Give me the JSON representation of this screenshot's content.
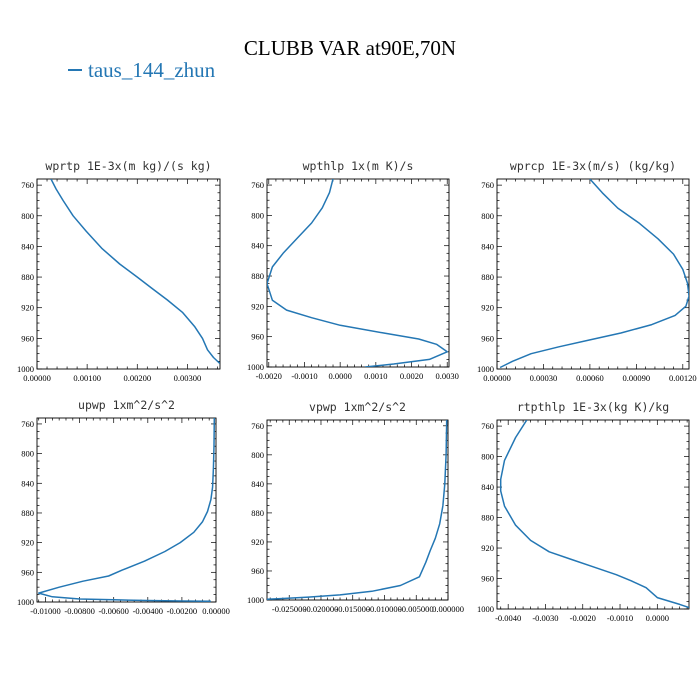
{
  "figure": {
    "title": "CLUBB VAR at90E,70N",
    "legend_label": "taus_144_zhun",
    "line_color": "#2477b4"
  },
  "chart_data": [
    {
      "type": "line",
      "title": "wprtp  1E-3x(m kg)/(s kg)",
      "xlim": [
        0.0,
        0.00365
      ],
      "ylim": [
        1000,
        752
      ],
      "x_ticks": [
        "0.00000",
        "0.00100",
        "0.00200",
        "0.00300"
      ],
      "x_tick_values": [
        0.0,
        0.001,
        0.002,
        0.003
      ],
      "y_ticks": [
        "760",
        "800",
        "840",
        "880",
        "920",
        "960",
        "1000"
      ],
      "series": [
        {
          "x": [
            0.00028,
            0.00038,
            0.00052,
            0.00072,
            0.00098,
            0.0013,
            0.00165,
            0.002,
            0.0023,
            0.0026,
            0.0029,
            0.00315,
            0.0033,
            0.0034,
            0.00352,
            0.00365
          ],
          "y": [
            752,
            765,
            780,
            800,
            820,
            843,
            863,
            880,
            895,
            910,
            926,
            945,
            960,
            975,
            985,
            993
          ]
        }
      ]
    },
    {
      "type": "line",
      "title": "wpthlp  1x(m K)/s",
      "xlim": [
        -0.00205,
        0.00305
      ],
      "ylim": [
        1000,
        752
      ],
      "x_ticks": [
        "-0.0020",
        "-0.0010",
        "0.0000",
        "0.0010",
        "0.0020",
        "0.0030"
      ],
      "x_tick_values": [
        -0.002,
        -0.001,
        0.0,
        0.001,
        0.002,
        0.003
      ],
      "y_ticks": [
        "760",
        "800",
        "840",
        "880",
        "920",
        "960",
        "1000"
      ],
      "series": [
        {
          "x": [
            -0.0002,
            -0.0003,
            -0.0005,
            -0.0008,
            -0.0012,
            -0.0016,
            -0.0019,
            -0.00205,
            -0.0019,
            -0.0015,
            -0.0008,
            0.0,
            0.0012,
            0.0022,
            0.0027,
            0.003,
            0.0025,
            0.0015,
            0.0007
          ],
          "y": [
            752,
            770,
            790,
            810,
            830,
            850,
            868,
            890,
            912,
            925,
            935,
            945,
            955,
            963,
            970,
            980,
            990,
            996,
            1000
          ]
        }
      ]
    },
    {
      "type": "line",
      "title": "wprcp  1E-3x(m/s) (kg/kg)",
      "xlim": [
        0.0,
        0.00124
      ],
      "ylim": [
        1000,
        752
      ],
      "x_ticks": [
        "0.00000",
        "0.00030",
        "0.00060",
        "0.00090",
        "0.00120"
      ],
      "x_tick_values": [
        0.0,
        0.0003,
        0.0006,
        0.0009,
        0.0012
      ],
      "y_ticks": [
        "760",
        "800",
        "840",
        "880",
        "920",
        "960",
        "1000"
      ],
      "series": [
        {
          "x": [
            0.0006,
            0.00068,
            0.00078,
            0.00092,
            0.00104,
            0.00114,
            0.0012,
            0.00123,
            0.00124,
            0.00122,
            0.00115,
            0.001,
            0.0008,
            0.0006,
            0.0004,
            0.00022,
            0.0001,
            2e-05
          ],
          "y": [
            752,
            770,
            790,
            810,
            830,
            850,
            870,
            888,
            905,
            918,
            930,
            942,
            953,
            962,
            971,
            980,
            990,
            998
          ]
        }
      ]
    },
    {
      "type": "line",
      "title": "upwp  1xm^2/s^2",
      "xlim": [
        -0.0105,
        0.0
      ],
      "ylim": [
        1000,
        752
      ],
      "x_ticks": [
        "-0.01000",
        "-0.00800",
        "-0.00600",
        "-0.00400",
        "-0.00200",
        "0.00000"
      ],
      "x_tick_values": [
        -0.01,
        -0.008,
        -0.006,
        -0.004,
        -0.002,
        0.0
      ],
      "y_ticks": [
        "760",
        "800",
        "840",
        "880",
        "920",
        "960",
        "1000"
      ],
      "series": [
        {
          "x": [
            -0.0001,
            -0.00012,
            -0.00015,
            -0.0002,
            -0.0003,
            -0.0005,
            -0.0008,
            -0.0013,
            -0.0021,
            -0.003,
            -0.0042,
            -0.0055,
            -0.0063,
            -0.0078,
            -0.0092,
            -0.0104,
            -0.0096,
            -0.008,
            -0.006,
            -0.004,
            -0.002,
            -0.0003
          ],
          "y": [
            752,
            790,
            820,
            845,
            862,
            878,
            892,
            906,
            920,
            932,
            945,
            957,
            965,
            972,
            980,
            988,
            993,
            996,
            997,
            998,
            998.7,
            999
          ]
        }
      ]
    },
    {
      "type": "line",
      "title": "vpwp  1xm^2/s^2",
      "xlim": [
        -0.0285,
        0.0
      ],
      "ylim": [
        1000,
        752
      ],
      "x_ticks": [
        "-0.025000",
        "-0.020000",
        "-0.015000",
        "-0.010000",
        "-0.005000",
        "0.000000"
      ],
      "x_tick_values": [
        -0.025,
        -0.02,
        -0.015,
        -0.01,
        -0.005,
        0.0
      ],
      "y_ticks": [
        "760",
        "800",
        "840",
        "880",
        "920",
        "960",
        "1000"
      ],
      "series": [
        {
          "x": [
            -0.0002,
            -0.0003,
            -0.0005,
            -0.0008,
            -0.0013,
            -0.002,
            -0.0028,
            -0.0035,
            -0.0045,
            -0.0075,
            -0.012,
            -0.017,
            -0.022,
            -0.026,
            -0.0285
          ],
          "y": [
            752,
            800,
            840,
            870,
            895,
            915,
            932,
            948,
            968,
            980,
            988,
            993,
            996,
            998,
            999
          ]
        }
      ]
    },
    {
      "type": "line",
      "title": "rtpthlp  1E-3x(kg K)/kg",
      "xlim": [
        -0.0043,
        0.00085
      ],
      "ylim": [
        1000,
        752
      ],
      "x_ticks": [
        "-0.0040",
        "-0.0030",
        "-0.0020",
        "-0.0010",
        "0.0000"
      ],
      "x_tick_values": [
        -0.004,
        -0.003,
        -0.002,
        -0.001,
        0.0
      ],
      "y_ticks": [
        "760",
        "800",
        "840",
        "880",
        "920",
        "960",
        "1000"
      ],
      "series": [
        {
          "x": [
            -0.0035,
            -0.0038,
            -0.0041,
            -0.0042,
            -0.0042,
            -0.0041,
            -0.0038,
            -0.0034,
            -0.0029,
            -0.0023,
            -0.0017,
            -0.0011,
            -0.0007,
            -0.0003,
            0.0,
            0.0006,
            0.00085
          ],
          "y": [
            752,
            775,
            805,
            830,
            845,
            865,
            890,
            910,
            925,
            935,
            945,
            955,
            963,
            972,
            985,
            994,
            998
          ]
        }
      ]
    }
  ]
}
